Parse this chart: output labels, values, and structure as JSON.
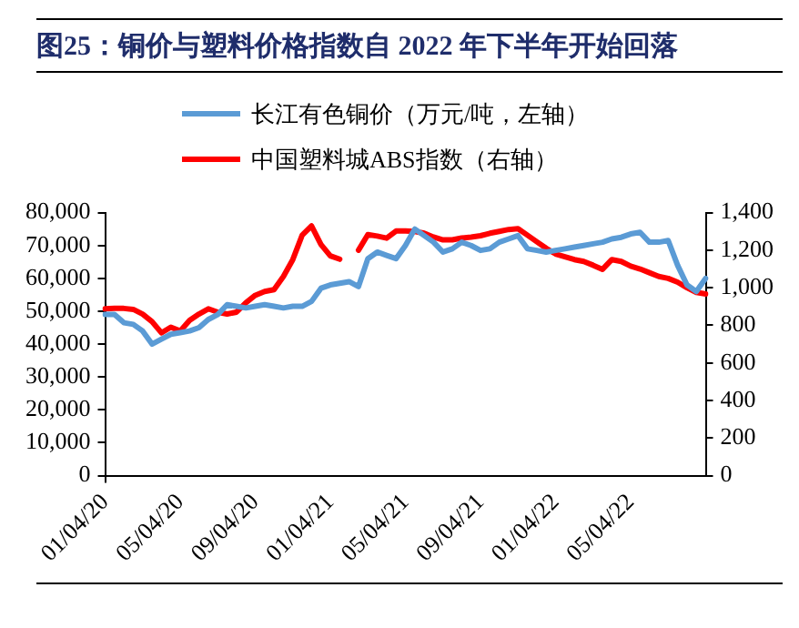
{
  "chart_data": {
    "type": "line",
    "title": "图25：铜价与塑料价格指数自 2022 年下半年开始回落",
    "categories": [
      "01/04/20",
      null,
      null,
      null,
      null,
      null,
      null,
      null,
      "05/04/20",
      null,
      null,
      null,
      null,
      null,
      null,
      null,
      "09/04/20",
      null,
      null,
      null,
      null,
      null,
      null,
      null,
      "01/04/21",
      null,
      null,
      null,
      null,
      null,
      null,
      null,
      "05/04/21",
      null,
      null,
      null,
      null,
      null,
      null,
      null,
      "09/04/21",
      null,
      null,
      null,
      null,
      null,
      null,
      null,
      "01/04/22",
      null,
      null,
      null,
      null,
      null,
      null,
      null,
      "05/04/22",
      null,
      null,
      null,
      null,
      null,
      null,
      null,
      null
    ],
    "series": [
      {
        "name": "长江有色铜价（万元/吨，左轴）",
        "color": "#5b9bd5",
        "values": [
          49000,
          49000,
          46500,
          46000,
          44000,
          40000,
          41500,
          43000,
          43500,
          44000,
          45000,
          47500,
          49000,
          52000,
          51500,
          51000,
          51500,
          52000,
          51500,
          51000,
          51500,
          51500,
          53000,
          57000,
          58000,
          58500,
          59000,
          57500,
          66000,
          68000,
          67000,
          66000,
          70000,
          75000,
          73000,
          71000,
          68000,
          69000,
          71000,
          70000,
          68500,
          69000,
          71000,
          72000,
          73000,
          69000,
          68500,
          68000,
          68500,
          69000,
          69500,
          70000,
          70500,
          71000,
          72000,
          72500,
          73500,
          74000,
          71000,
          71000,
          71500,
          64000,
          58000,
          56000,
          60000
        ]
      },
      {
        "name": "中国塑料城ABS指数（右轴）",
        "color": "#ff0000",
        "axis": "y2",
        "values": [
          888,
          890,
          890,
          885,
          860,
          820,
          760,
          790,
          770,
          826,
          860,
          888,
          870,
          860,
          870,
          920,
          960,
          980,
          990,
          1060,
          1150,
          1280,
          1329,
          1230,
          1170,
          1152,
          null,
          1200,
          1283,
          1275,
          1264,
          1302,
          1302,
          1300,
          1290,
          1270,
          1255,
          1255,
          1265,
          1270,
          1277,
          1290,
          1300,
          1310,
          1314,
          1280,
          1245,
          1210,
          1180,
          1165,
          1150,
          1140,
          1120,
          1098,
          1150,
          1140,
          1115,
          1100,
          1080,
          1060,
          1050,
          1030,
          1000,
          975,
          967
        ]
      }
    ],
    "ylim": [
      0,
      80000
    ],
    "yticks": [
      0,
      {
        "value": 10000,
        "label": "10,000"
      },
      {
        "value": 20000,
        "label": "20,000"
      },
      {
        "value": 30000,
        "label": "30,000"
      },
      {
        "value": 40000,
        "label": "40,000"
      },
      {
        "value": 50000,
        "label": "50,000"
      },
      {
        "value": 60000,
        "label": "60,000"
      },
      {
        "value": 70000,
        "label": "70,000"
      },
      {
        "value": 80000,
        "label": "80,000"
      }
    ],
    "y2lim": [
      0,
      1400
    ],
    "y2ticks": [
      0,
      200,
      400,
      600,
      800,
      {
        "value": 1000,
        "label": "1,000"
      },
      {
        "value": 1200,
        "label": "1,200"
      },
      {
        "value": 1400,
        "label": "1,400"
      }
    ],
    "grid": false,
    "legend": "top",
    "marker": "none",
    "line_style": "solid"
  }
}
